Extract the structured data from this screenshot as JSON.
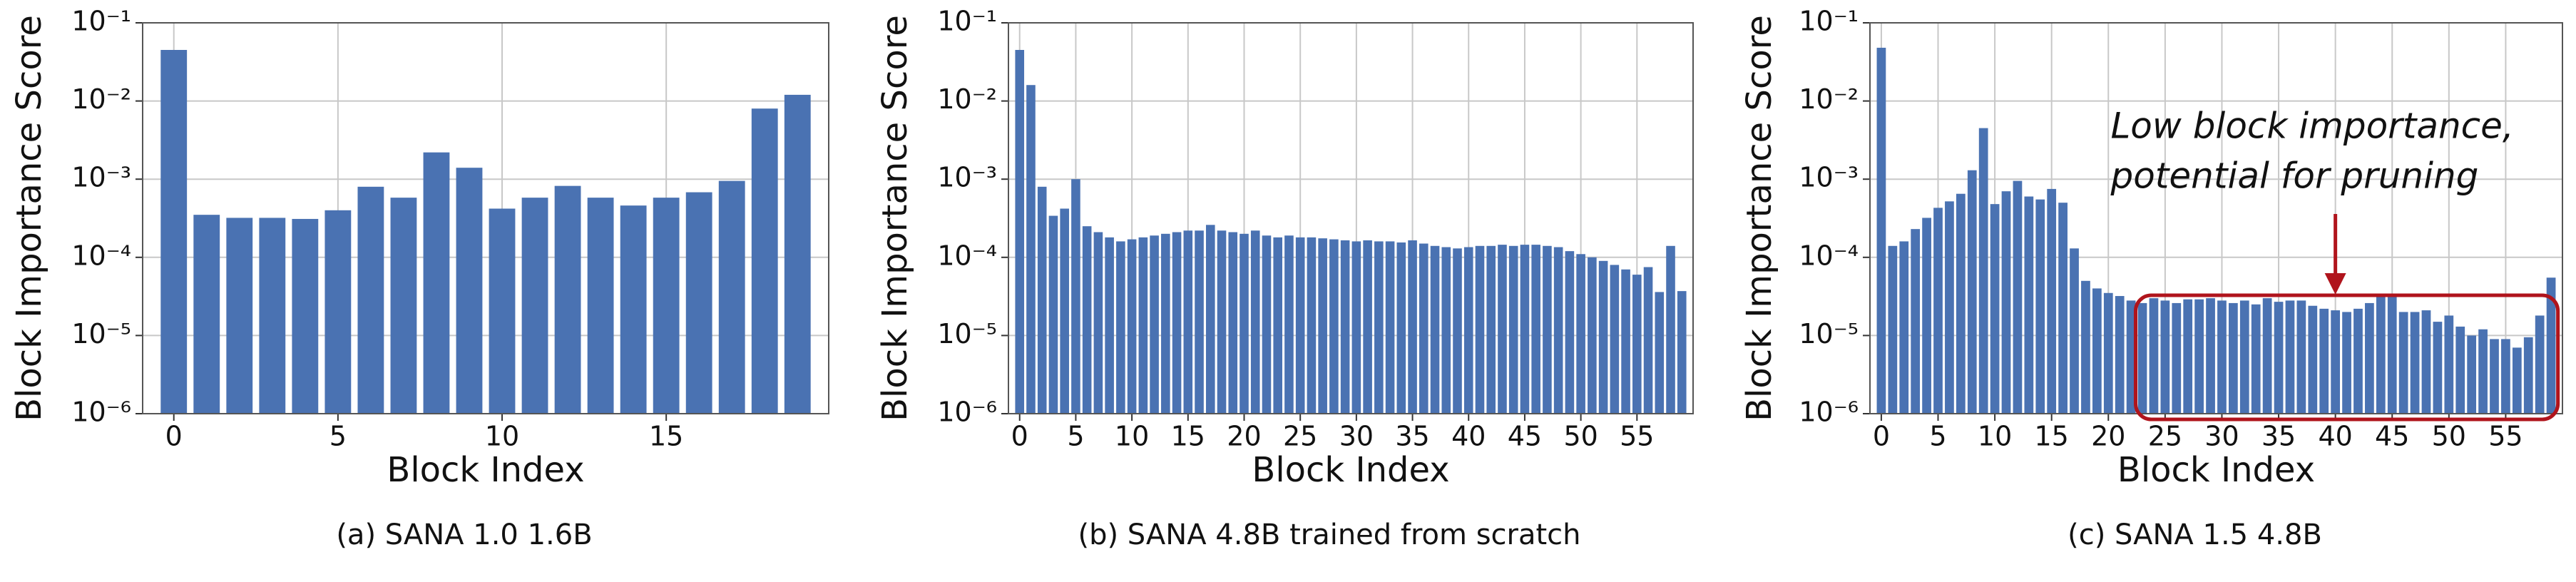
{
  "chart_data": [
    {
      "type": "bar",
      "caption": "(a) SANA 1.0 1.6B",
      "xlabel": "Block Index",
      "ylabel": "Block Importance Score",
      "color": "#4a72b2",
      "log_y": true,
      "grid": true,
      "x": [
        0,
        1,
        2,
        3,
        4,
        5,
        6,
        7,
        8,
        9,
        10,
        11,
        12,
        13,
        14,
        15,
        16,
        17,
        18,
        19
      ],
      "values": [
        0.045,
        0.00035,
        0.00032,
        0.00032,
        0.00031,
        0.0004,
        0.0008,
        0.00058,
        0.0022,
        0.0014,
        0.00042,
        0.00058,
        0.00082,
        0.00058,
        0.00046,
        0.00058,
        0.00068,
        0.00095,
        0.008,
        0.012
      ],
      "xlim": [
        -0.95,
        19.95
      ],
      "xticks": [
        0,
        5,
        10,
        15
      ],
      "ylim": [
        1e-06,
        0.1
      ],
      "yticks": [
        {
          "value": 1e-06,
          "label": "10⁻⁶"
        },
        {
          "value": 1e-05,
          "label": "10⁻⁵"
        },
        {
          "value": 0.0001,
          "label": "10⁻⁴"
        },
        {
          "value": 0.001,
          "label": "10⁻³"
        },
        {
          "value": 0.01,
          "label": "10⁻²"
        },
        {
          "value": 0.1,
          "label": "10⁻¹"
        }
      ]
    },
    {
      "type": "bar",
      "caption": "(b) SANA 4.8B trained from scratch",
      "xlabel": "Block Index",
      "ylabel": "Block Importance Score",
      "color": "#4a72b2",
      "log_y": true,
      "grid": true,
      "x": [
        0,
        1,
        2,
        3,
        4,
        5,
        6,
        7,
        8,
        9,
        10,
        11,
        12,
        13,
        14,
        15,
        16,
        17,
        18,
        19,
        20,
        21,
        22,
        23,
        24,
        25,
        26,
        27,
        28,
        29,
        30,
        31,
        32,
        33,
        34,
        35,
        36,
        37,
        38,
        39,
        40,
        41,
        42,
        43,
        44,
        45,
        46,
        47,
        48,
        49,
        50,
        51,
        52,
        53,
        54,
        55,
        56,
        57,
        58,
        59
      ],
      "values": [
        0.045,
        0.016,
        0.0008,
        0.00034,
        0.00042,
        0.001,
        0.00025,
        0.00021,
        0.00018,
        0.00016,
        0.00017,
        0.00018,
        0.00019,
        0.0002,
        0.00021,
        0.00022,
        0.00022,
        0.00026,
        0.00022,
        0.00021,
        0.0002,
        0.00022,
        0.00019,
        0.00018,
        0.00019,
        0.00018,
        0.00018,
        0.000175,
        0.00017,
        0.000165,
        0.00016,
        0.000165,
        0.00016,
        0.00016,
        0.000155,
        0.000165,
        0.00015,
        0.00014,
        0.000135,
        0.00013,
        0.000135,
        0.00014,
        0.00014,
        0.000145,
        0.00014,
        0.000145,
        0.000145,
        0.00014,
        0.000135,
        0.00012,
        0.00011,
        0.0001,
        9e-05,
        8e-05,
        7e-05,
        6e-05,
        7.5e-05,
        3.6e-05,
        0.00014,
        3.7e-05
      ],
      "xlim": [
        -1,
        60
      ],
      "xticks": [
        0,
        5,
        10,
        15,
        20,
        25,
        30,
        35,
        40,
        45,
        50,
        55
      ],
      "ylim": [
        1e-06,
        0.1
      ],
      "yticks": [
        {
          "value": 1e-06,
          "label": "10⁻⁶"
        },
        {
          "value": 1e-05,
          "label": "10⁻⁵"
        },
        {
          "value": 0.0001,
          "label": "10⁻⁴"
        },
        {
          "value": 0.001,
          "label": "10⁻³"
        },
        {
          "value": 0.01,
          "label": "10⁻²"
        },
        {
          "value": 0.1,
          "label": "10⁻¹"
        }
      ]
    },
    {
      "type": "bar",
      "caption": "(c) SANA 1.5 4.8B",
      "xlabel": "Block Index",
      "ylabel": "Block Importance Score",
      "color": "#4a72b2",
      "log_y": true,
      "grid": true,
      "annotation": [
        "Low block importance,",
        "potential for pruning"
      ],
      "annotation_color": "#b0141c",
      "x": [
        0,
        1,
        2,
        3,
        4,
        5,
        6,
        7,
        8,
        9,
        10,
        11,
        12,
        13,
        14,
        15,
        16,
        17,
        18,
        19,
        20,
        21,
        22,
        23,
        24,
        25,
        26,
        27,
        28,
        29,
        30,
        31,
        32,
        33,
        34,
        35,
        36,
        37,
        38,
        39,
        40,
        41,
        42,
        43,
        44,
        45,
        46,
        47,
        48,
        49,
        50,
        51,
        52,
        53,
        54,
        55,
        56,
        57,
        58,
        59
      ],
      "values": [
        0.048,
        0.00014,
        0.00016,
        0.00023,
        0.00032,
        0.00043,
        0.00052,
        0.00065,
        0.0013,
        0.0045,
        0.00048,
        0.0007,
        0.00095,
        0.0006,
        0.00055,
        0.00075,
        0.0005,
        0.00013,
        5e-05,
        4e-05,
        3.5e-05,
        3.2e-05,
        2.8e-05,
        2.6e-05,
        3e-05,
        2.8e-05,
        2.6e-05,
        2.9e-05,
        2.9e-05,
        3e-05,
        2.8e-05,
        2.6e-05,
        2.8e-05,
        2.5e-05,
        3e-05,
        2.7e-05,
        2.8e-05,
        2.8e-05,
        2.4e-05,
        2.2e-05,
        2.1e-05,
        2e-05,
        2.2e-05,
        2.6e-05,
        3.2e-05,
        3.2e-05,
        2e-05,
        2e-05,
        2.1e-05,
        1.5e-05,
        1.8e-05,
        1.3e-05,
        1e-05,
        1.2e-05,
        9e-06,
        9e-06,
        7e-06,
        9.5e-06,
        1.8e-05,
        5.5e-05
      ],
      "xlim": [
        -1,
        60
      ],
      "xticks": [
        0,
        5,
        10,
        15,
        20,
        25,
        30,
        35,
        40,
        45,
        50,
        55
      ],
      "ylim": [
        1e-06,
        0.1
      ],
      "yticks": [
        {
          "value": 1e-06,
          "label": "10⁻⁶"
        },
        {
          "value": 1e-05,
          "label": "10⁻⁵"
        },
        {
          "value": 0.0001,
          "label": "10⁻⁴"
        },
        {
          "value": 0.001,
          "label": "10⁻³"
        },
        {
          "value": 0.01,
          "label": "10⁻²"
        },
        {
          "value": 0.1,
          "label": "10⁻¹"
        }
      ]
    }
  ]
}
